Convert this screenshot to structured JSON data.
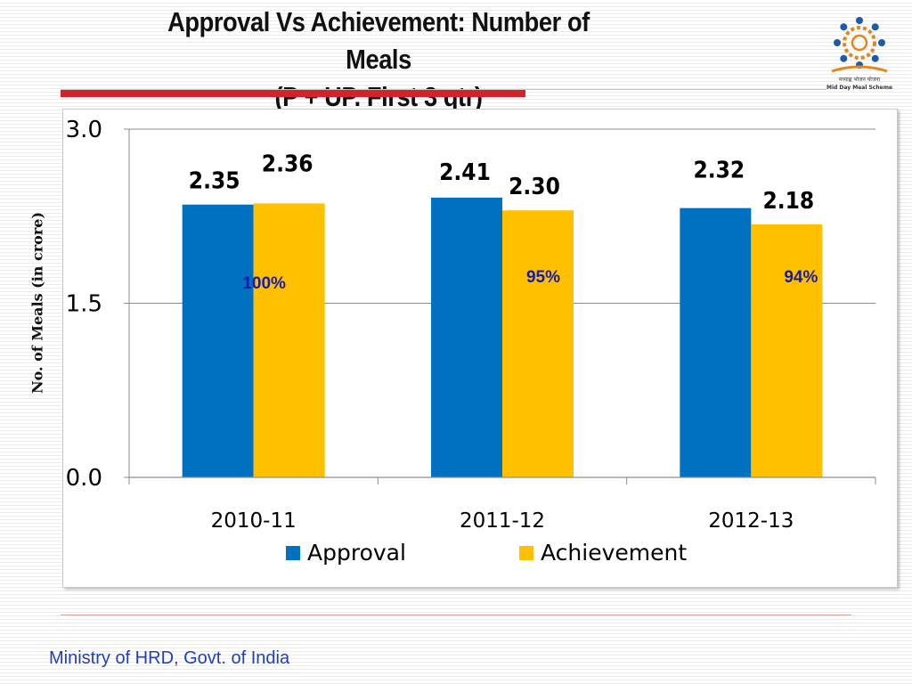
{
  "slide": {
    "title_line1": "Approval Vs Achievement:  Number of Meals",
    "title_line2": "(P + UP. First 3 qtr)",
    "footer": "Ministry of HRD, Govt. of India",
    "logo_caption_line1": "मध्याह्न भोजन योजना",
    "logo_caption_line2": "Mid Day Meal Scheme"
  },
  "colors": {
    "approval": "#0070C0",
    "achievement": "#FFC000",
    "pct_label": "#1a1aa8",
    "title_bar": "#d2232a"
  },
  "chart_data": {
    "type": "bar",
    "ylabel": "No. of Meals (in crore)",
    "xlabel": "",
    "categories": [
      "2010-11",
      "2011-12",
      "2012-13"
    ],
    "series": [
      {
        "name": "Approval",
        "values": [
          2.35,
          2.41,
          2.32
        ]
      },
      {
        "name": "Achievement",
        "values": [
          2.36,
          2.3,
          2.18
        ]
      }
    ],
    "data_labels": [
      [
        "2.35",
        "2.41",
        "2.32"
      ],
      [
        "2.36",
        "2.30",
        "2.18"
      ]
    ],
    "percent_labels": [
      "100%",
      "95%",
      "94%"
    ],
    "ylim": [
      0,
      3.0
    ],
    "yticks": [
      0.0,
      1.5,
      3.0
    ],
    "ytick_labels": [
      "0.0",
      "1.5",
      "3.0"
    ],
    "grid": true,
    "legend_position": "bottom"
  }
}
